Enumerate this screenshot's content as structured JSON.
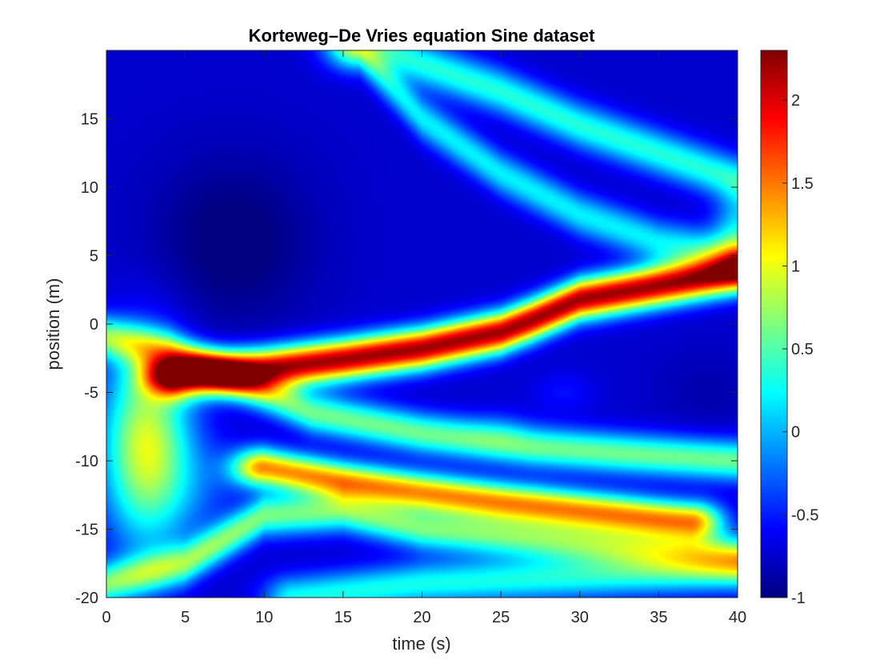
{
  "chart_data": {
    "type": "heatmap",
    "title": "Korteweg–De Vries equation Sine dataset",
    "xlabel": "time (s)",
    "ylabel": "position (m)",
    "xlim": [
      0,
      40
    ],
    "ylim": [
      -20,
      20
    ],
    "xticks": [
      0,
      5,
      10,
      15,
      20,
      25,
      30,
      35,
      40
    ],
    "yticks": [
      -20,
      -15,
      -10,
      -5,
      0,
      5,
      10,
      15
    ],
    "colormap": "jet",
    "clim": [
      -1,
      2.3
    ],
    "colorbar_ticks": [
      -1,
      -0.5,
      0,
      0.5,
      1,
      1.5,
      2
    ],
    "background": -0.75,
    "features": [
      {
        "name": "main soliton",
        "path": [
          [
            4.5,
            -3.8
          ],
          [
            10,
            -3.3
          ],
          [
            15,
            -2.6
          ],
          [
            20,
            -1.8
          ],
          [
            25,
            -0.6
          ],
          [
            27,
            0.3
          ],
          [
            30,
            1.8
          ],
          [
            35,
            2.8
          ],
          [
            40,
            3.8
          ]
        ],
        "peak": 2.2,
        "width": 1.5
      },
      {
        "name": "second soliton",
        "path": [
          [
            10,
            -10.5
          ],
          [
            15,
            -11.5
          ],
          [
            20,
            -12.3
          ],
          [
            25,
            -13
          ],
          [
            30,
            -13.6
          ],
          [
            35,
            -14.2
          ],
          [
            37,
            -14.4
          ]
        ],
        "peak": 1.4,
        "width": 1.4
      },
      {
        "name": "upper ridge",
        "path": [
          [
            16,
            21
          ],
          [
            20,
            19
          ],
          [
            25,
            17
          ],
          [
            30,
            14.5
          ],
          [
            35,
            12.5
          ],
          [
            40,
            10.5
          ]
        ],
        "peak": 0.35,
        "width": 1.7
      },
      {
        "name": "middle ridge",
        "path": [
          [
            16,
            20
          ],
          [
            20,
            15
          ],
          [
            25,
            11
          ],
          [
            30,
            8
          ],
          [
            35,
            6
          ],
          [
            40,
            5
          ]
        ],
        "peak": 0.2,
        "width": 1.6
      },
      {
        "name": "left ridge",
        "path": [
          [
            0,
            -1
          ],
          [
            4,
            -2
          ],
          [
            8,
            -4
          ],
          [
            13,
            -6.5
          ],
          [
            20,
            -8
          ],
          [
            27,
            -9
          ],
          [
            33,
            -9.5
          ],
          [
            40,
            -10
          ]
        ],
        "peak": 0.6,
        "width": 1.5
      },
      {
        "name": "lower ridge",
        "path": [
          [
            0,
            -19
          ],
          [
            5,
            -17.5
          ],
          [
            10,
            -14
          ],
          [
            15,
            -13.7
          ],
          [
            20,
            -15
          ],
          [
            25,
            -15.5
          ],
          [
            30,
            -16
          ],
          [
            40,
            -17
          ]
        ],
        "peak": 0.6,
        "width": 1.5
      },
      {
        "name": "bottom ridge",
        "path": [
          [
            12,
            -20
          ],
          [
            20,
            -19
          ],
          [
            30,
            -18.5
          ],
          [
            40,
            -18
          ]
        ],
        "peak": 0.3,
        "width": 1.6
      }
    ],
    "blobs": [
      {
        "t": 2.5,
        "x": -9,
        "peak": 1.7,
        "st": 2.8,
        "sx": 7
      },
      {
        "t": 6,
        "x": -12,
        "peak": 0.3,
        "st": 3,
        "sx": 4
      },
      {
        "t": 40,
        "x": 7,
        "peak": 0.8,
        "st": 1.5,
        "sx": 2.5
      },
      {
        "t": 29,
        "x": -5,
        "peak": 0.2,
        "st": 2,
        "sx": 1.5
      },
      {
        "t": 25,
        "x": -7.5,
        "peak": 0.15,
        "st": 2,
        "sx": 1.5
      },
      {
        "t": 8,
        "x": 6,
        "peak": -0.3,
        "st": 5,
        "sx": 6
      },
      {
        "t": 38,
        "x": -5,
        "peak": -0.1,
        "st": 3,
        "sx": 3
      }
    ]
  }
}
